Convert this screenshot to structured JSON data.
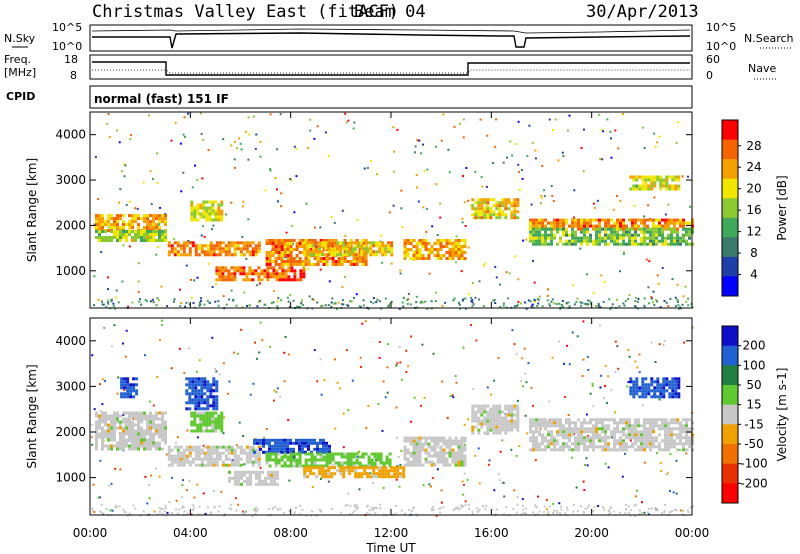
{
  "header": {
    "station": "Christmas Valley East (fitACF)",
    "beam": "Beam 04",
    "date": "30/Apr/2013"
  },
  "top_panels": {
    "nsky_label": "N.Sky",
    "nsearch_label": "N.Search",
    "nsky_ticks": [
      "10^5",
      "10^0"
    ],
    "nsearch_ticks": [
      "10^5",
      "10^0"
    ],
    "freq_label": "Freq.",
    "freq_unit": "[MHz]",
    "freq_ticks": [
      "18",
      "8"
    ],
    "nave_label": "Nave",
    "nave_ticks": [
      "60",
      "0"
    ],
    "cpid_label": "CPID",
    "cpid_value": "normal (fast) 151 IF"
  },
  "colors": {
    "power_scale": [
      "#0000ff",
      "#1f3fa8",
      "#3a7a6a",
      "#3fa85a",
      "#8cc832",
      "#f0e600",
      "#f5a000",
      "#f56400",
      "#ff0000"
    ],
    "velocity_scale": [
      "#1010c8",
      "#2060d0",
      "#208040",
      "#60c830",
      "#c8c8c8",
      "#f0a000",
      "#f07000",
      "#e83000",
      "#ff0000"
    ]
  },
  "chart_data": [
    {
      "type": "heatmap",
      "name": "power",
      "ylabel": "Slant Range [km]",
      "xlabel": "Time UT",
      "xticks": [
        "00:00",
        "04:00",
        "08:00",
        "12:00",
        "16:00",
        "20:00",
        "00:00"
      ],
      "yticks": [
        "1000",
        "2000",
        "3000",
        "4000"
      ],
      "xlim_hours": [
        0,
        24
      ],
      "ylim_km": [
        180,
        4500
      ],
      "colorbar_label": "Power [dB]",
      "colorbar_ticks": [
        "4",
        "8",
        "12",
        "16",
        "20",
        "24",
        "28"
      ],
      "crange": [
        0,
        30
      ],
      "bands": [
        {
          "t0": 0.2,
          "t1": 3.0,
          "r0": 1900,
          "r1": 2250,
          "v": 22
        },
        {
          "t0": 0.2,
          "t1": 3.0,
          "r0": 1700,
          "r1": 1900,
          "v": 16
        },
        {
          "t0": 3.1,
          "t1": 6.8,
          "r0": 1350,
          "r1": 1650,
          "v": 24
        },
        {
          "t0": 4.0,
          "t1": 5.2,
          "r0": 2150,
          "r1": 2550,
          "v": 18
        },
        {
          "t0": 5.0,
          "t1": 8.5,
          "r0": 800,
          "r1": 1100,
          "v": 26
        },
        {
          "t0": 7.0,
          "t1": 11.0,
          "r0": 1150,
          "r1": 1700,
          "v": 24
        },
        {
          "t0": 8.5,
          "t1": 12.0,
          "r0": 1350,
          "r1": 1650,
          "v": 20
        },
        {
          "t0": 12.5,
          "t1": 15.0,
          "r0": 1300,
          "r1": 1700,
          "v": 22
        },
        {
          "t0": 15.2,
          "t1": 17.0,
          "r0": 2200,
          "r1": 2600,
          "v": 20
        },
        {
          "t0": 17.5,
          "t1": 24.0,
          "r0": 1950,
          "r1": 2150,
          "v": 24
        },
        {
          "t0": 17.5,
          "t1": 24.0,
          "r0": 1600,
          "r1": 1950,
          "v": 14
        },
        {
          "t0": 21.5,
          "t1": 23.5,
          "r0": 2800,
          "r1": 3100,
          "v": 18
        }
      ]
    },
    {
      "type": "heatmap",
      "name": "velocity",
      "ylabel": "Slant Range [km]",
      "xlabel": "Time UT",
      "xticks": [
        "00:00",
        "04:00",
        "08:00",
        "12:00",
        "16:00",
        "20:00",
        "00:00"
      ],
      "yticks": [
        "1000",
        "2000",
        "3000",
        "4000"
      ],
      "xlim_hours": [
        0,
        24
      ],
      "ylim_km": [
        180,
        4500
      ],
      "colorbar_label": "Velocity [m s-1]",
      "colorbar_ticks": [
        "200",
        "100",
        "50",
        "15",
        "-15",
        "-50",
        "-100",
        "-200"
      ],
      "crange": [
        -250,
        250
      ],
      "bands": [
        {
          "t0": 0.2,
          "t1": 3.0,
          "r0": 1600,
          "r1": 2450,
          "v": 0
        },
        {
          "t0": 1.2,
          "t1": 1.8,
          "r0": 2800,
          "r1": 3200,
          "v": 200
        },
        {
          "t0": 3.8,
          "t1": 5.0,
          "r0": 2500,
          "r1": 3200,
          "v": 200
        },
        {
          "t0": 4.0,
          "t1": 5.2,
          "r0": 2050,
          "r1": 2450,
          "v": 60
        },
        {
          "t0": 3.1,
          "t1": 6.8,
          "r0": 1300,
          "r1": 1700,
          "v": 0
        },
        {
          "t0": 5.5,
          "t1": 7.5,
          "r0": 850,
          "r1": 1150,
          "v": 0
        },
        {
          "t0": 6.5,
          "t1": 9.5,
          "r0": 1550,
          "r1": 1850,
          "v": 200
        },
        {
          "t0": 7.0,
          "t1": 12.0,
          "r0": 1250,
          "r1": 1550,
          "v": 60
        },
        {
          "t0": 8.5,
          "t1": 12.5,
          "r0": 1050,
          "r1": 1250,
          "v": -60
        },
        {
          "t0": 12.5,
          "t1": 15.0,
          "r0": 1300,
          "r1": 1900,
          "v": 0
        },
        {
          "t0": 15.2,
          "t1": 17.0,
          "r0": 2000,
          "r1": 2600,
          "v": 0
        },
        {
          "t0": 17.5,
          "t1": 24.0,
          "r0": 1600,
          "r1": 2300,
          "v": 0
        },
        {
          "t0": 21.5,
          "t1": 23.5,
          "r0": 2800,
          "r1": 3200,
          "v": 200
        }
      ]
    }
  ]
}
